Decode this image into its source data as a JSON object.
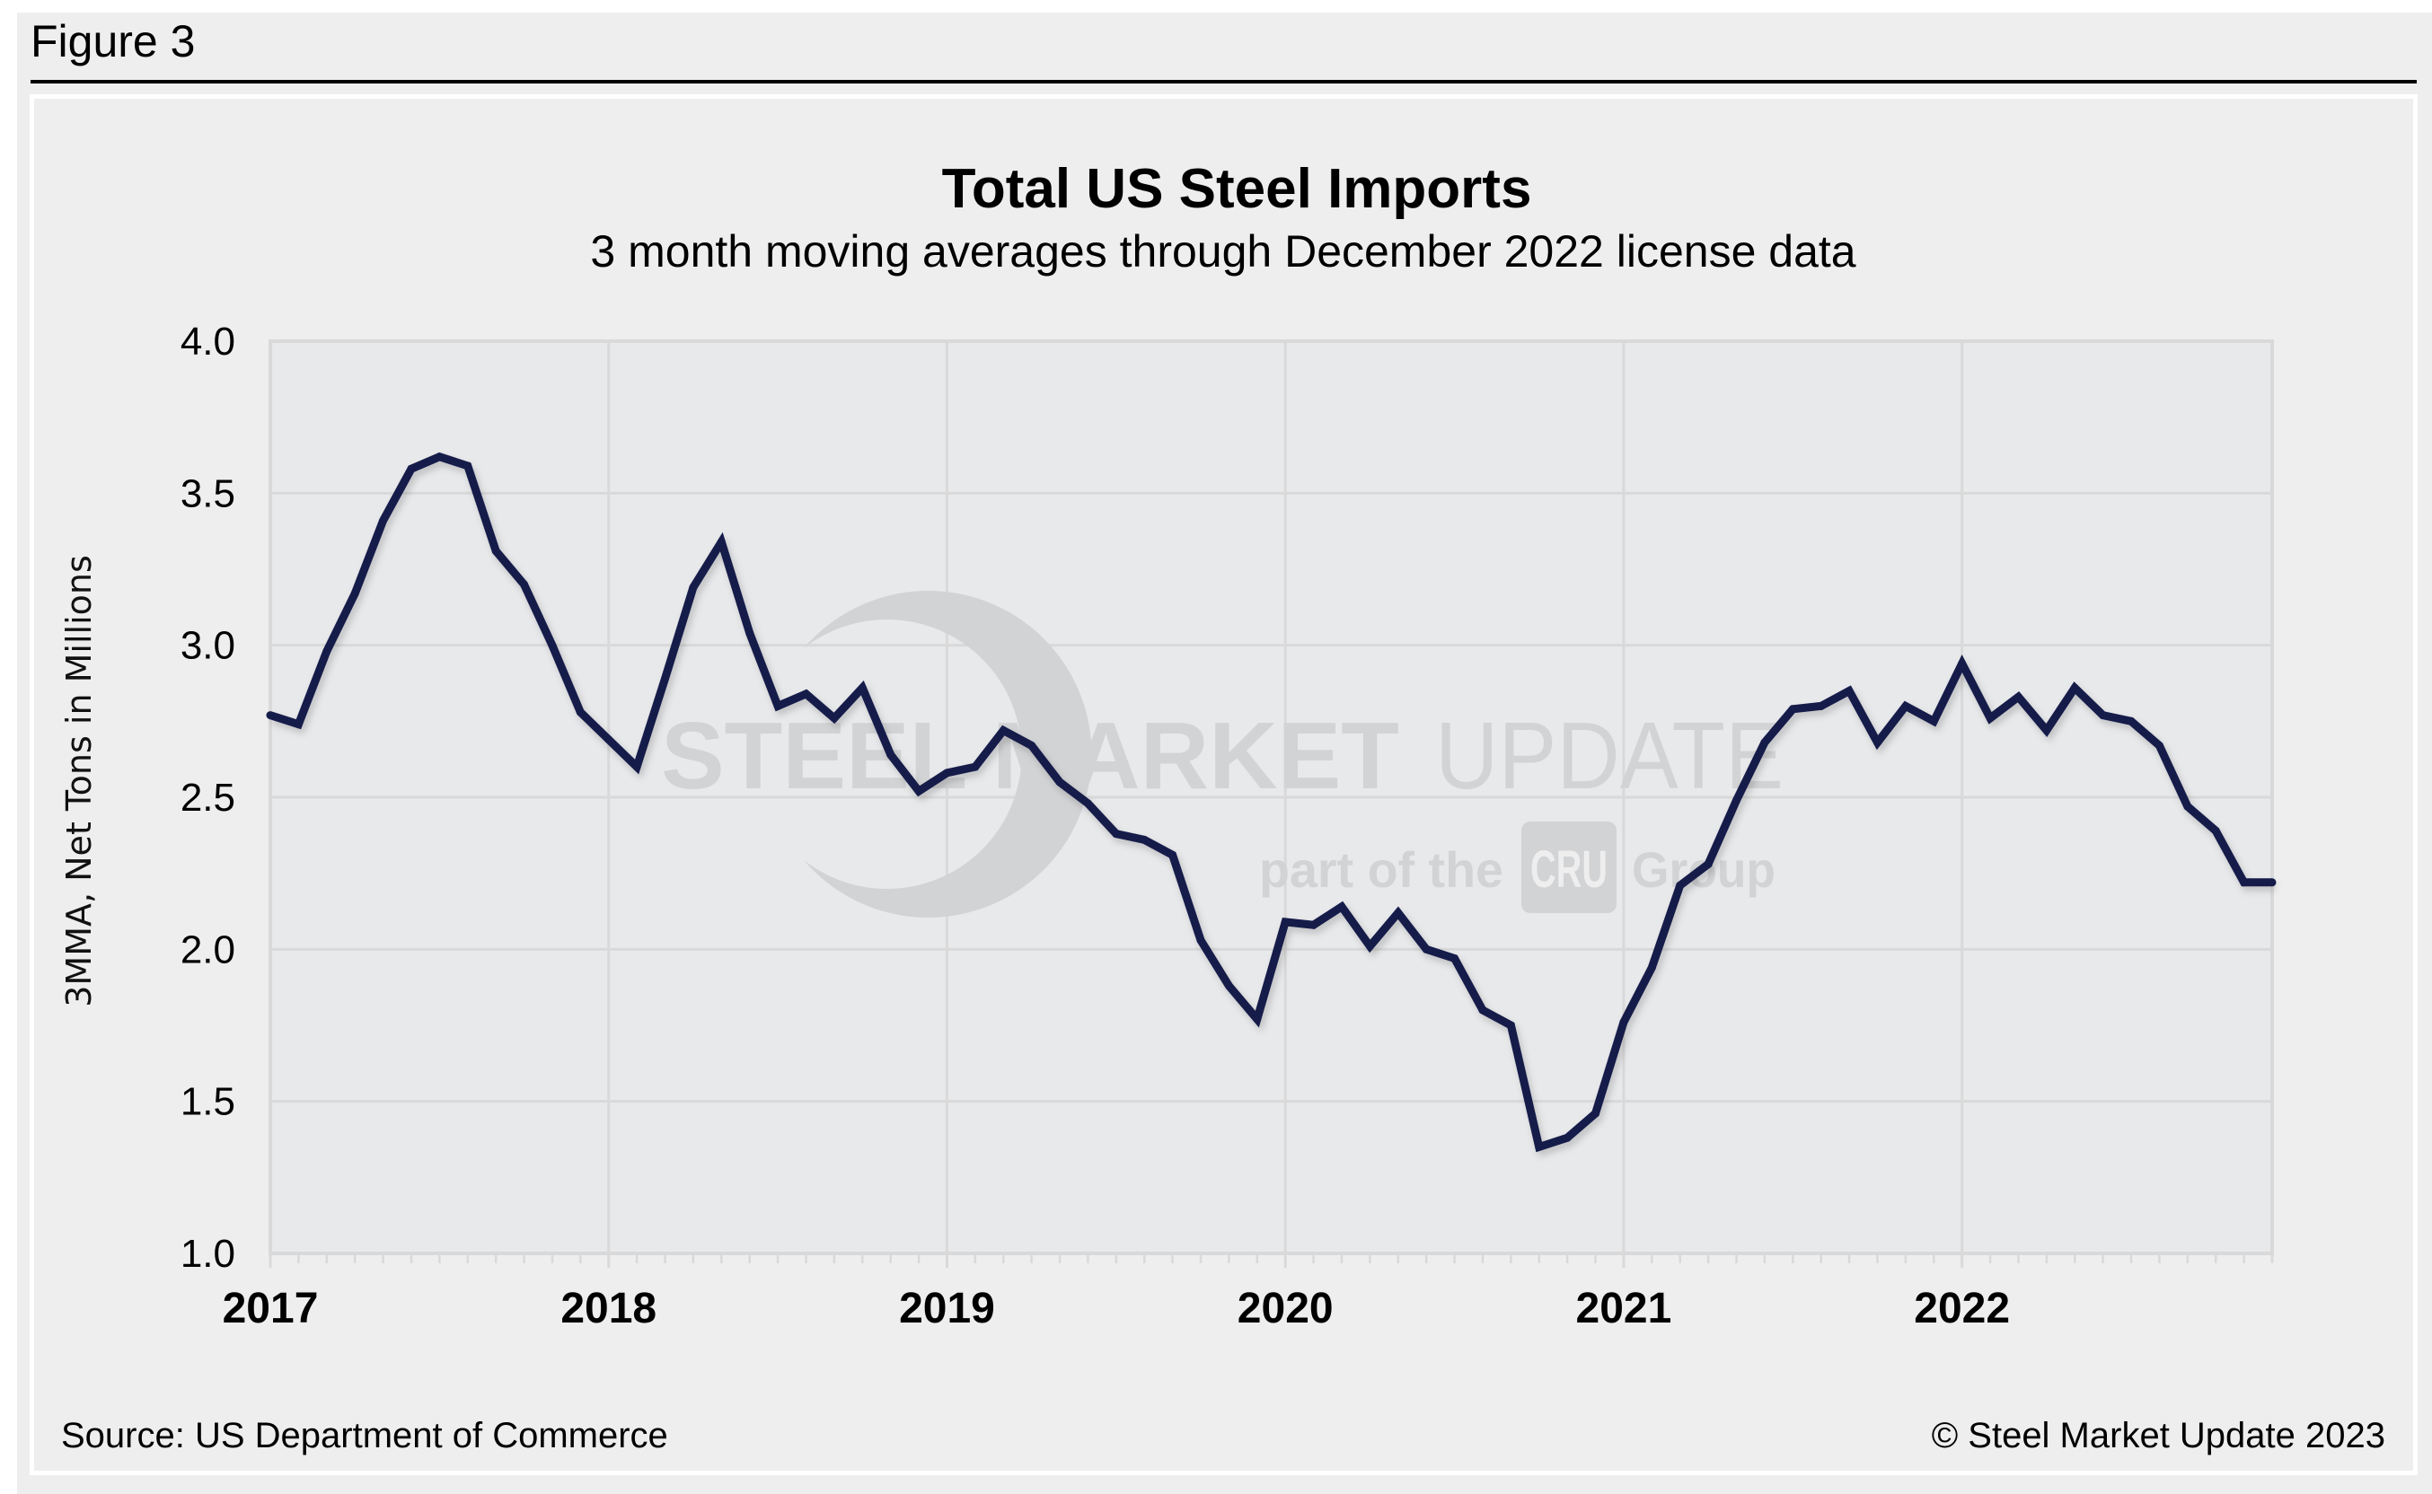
{
  "figure_label": "Figure 3",
  "footer": {
    "source": "Source: US Department of Commerce",
    "copyright": "© Steel Market Update 2023"
  },
  "watermark": {
    "brand_bold": "STEEL MARKET",
    "brand_light": "UPDATE",
    "tagline_prefix": "part of the",
    "tagline_logo": "CRU",
    "tagline_suffix": "Group"
  },
  "colors": {
    "line": "#161c4a",
    "plot_background": "#e8e9eb",
    "grid": "#d9d9d9",
    "watermark": "#d2d3d5"
  },
  "chart_data": {
    "type": "line",
    "title": "Total US Steel Imports",
    "subtitle": "3 month moving averages through December 2022 license data",
    "xlabel": "",
    "ylabel": "3MMA, Net Tons in Millions",
    "ylim": [
      1.0,
      4.0
    ],
    "yticks": [
      1.0,
      1.5,
      2.0,
      2.5,
      3.0,
      3.5,
      4.0
    ],
    "ytick_labels": [
      "1.0",
      "1.5",
      "2.0",
      "2.5",
      "3.0",
      "3.5",
      "4.0"
    ],
    "xtick_labels": [
      "2017",
      "2018",
      "2019",
      "2020",
      "2021",
      "2022"
    ],
    "x_start": "2017-01",
    "x_end": "2022-12",
    "x_frequency": "monthly",
    "grid": true,
    "legend": "none",
    "series": [
      {
        "name": "Total US Steel Imports (3MMA)",
        "values": [
          2.77,
          2.74,
          2.98,
          3.17,
          3.41,
          3.58,
          3.62,
          3.59,
          3.31,
          3.2,
          3.0,
          2.78,
          2.69,
          2.6,
          2.89,
          3.19,
          3.34,
          3.04,
          2.8,
          2.84,
          2.76,
          2.86,
          2.64,
          2.52,
          2.58,
          2.6,
          2.72,
          2.67,
          2.55,
          2.48,
          2.38,
          2.36,
          2.31,
          2.03,
          1.88,
          1.77,
          2.09,
          2.08,
          2.14,
          2.01,
          2.12,
          2.0,
          1.97,
          1.8,
          1.75,
          1.35,
          1.38,
          1.46,
          1.76,
          1.94,
          2.21,
          2.28,
          2.49,
          2.68,
          2.79,
          2.8,
          2.85,
          2.68,
          2.8,
          2.75,
          2.94,
          2.76,
          2.83,
          2.72,
          2.86,
          2.77,
          2.75,
          2.67,
          2.47,
          2.39,
          2.22,
          2.22
        ]
      }
    ]
  }
}
